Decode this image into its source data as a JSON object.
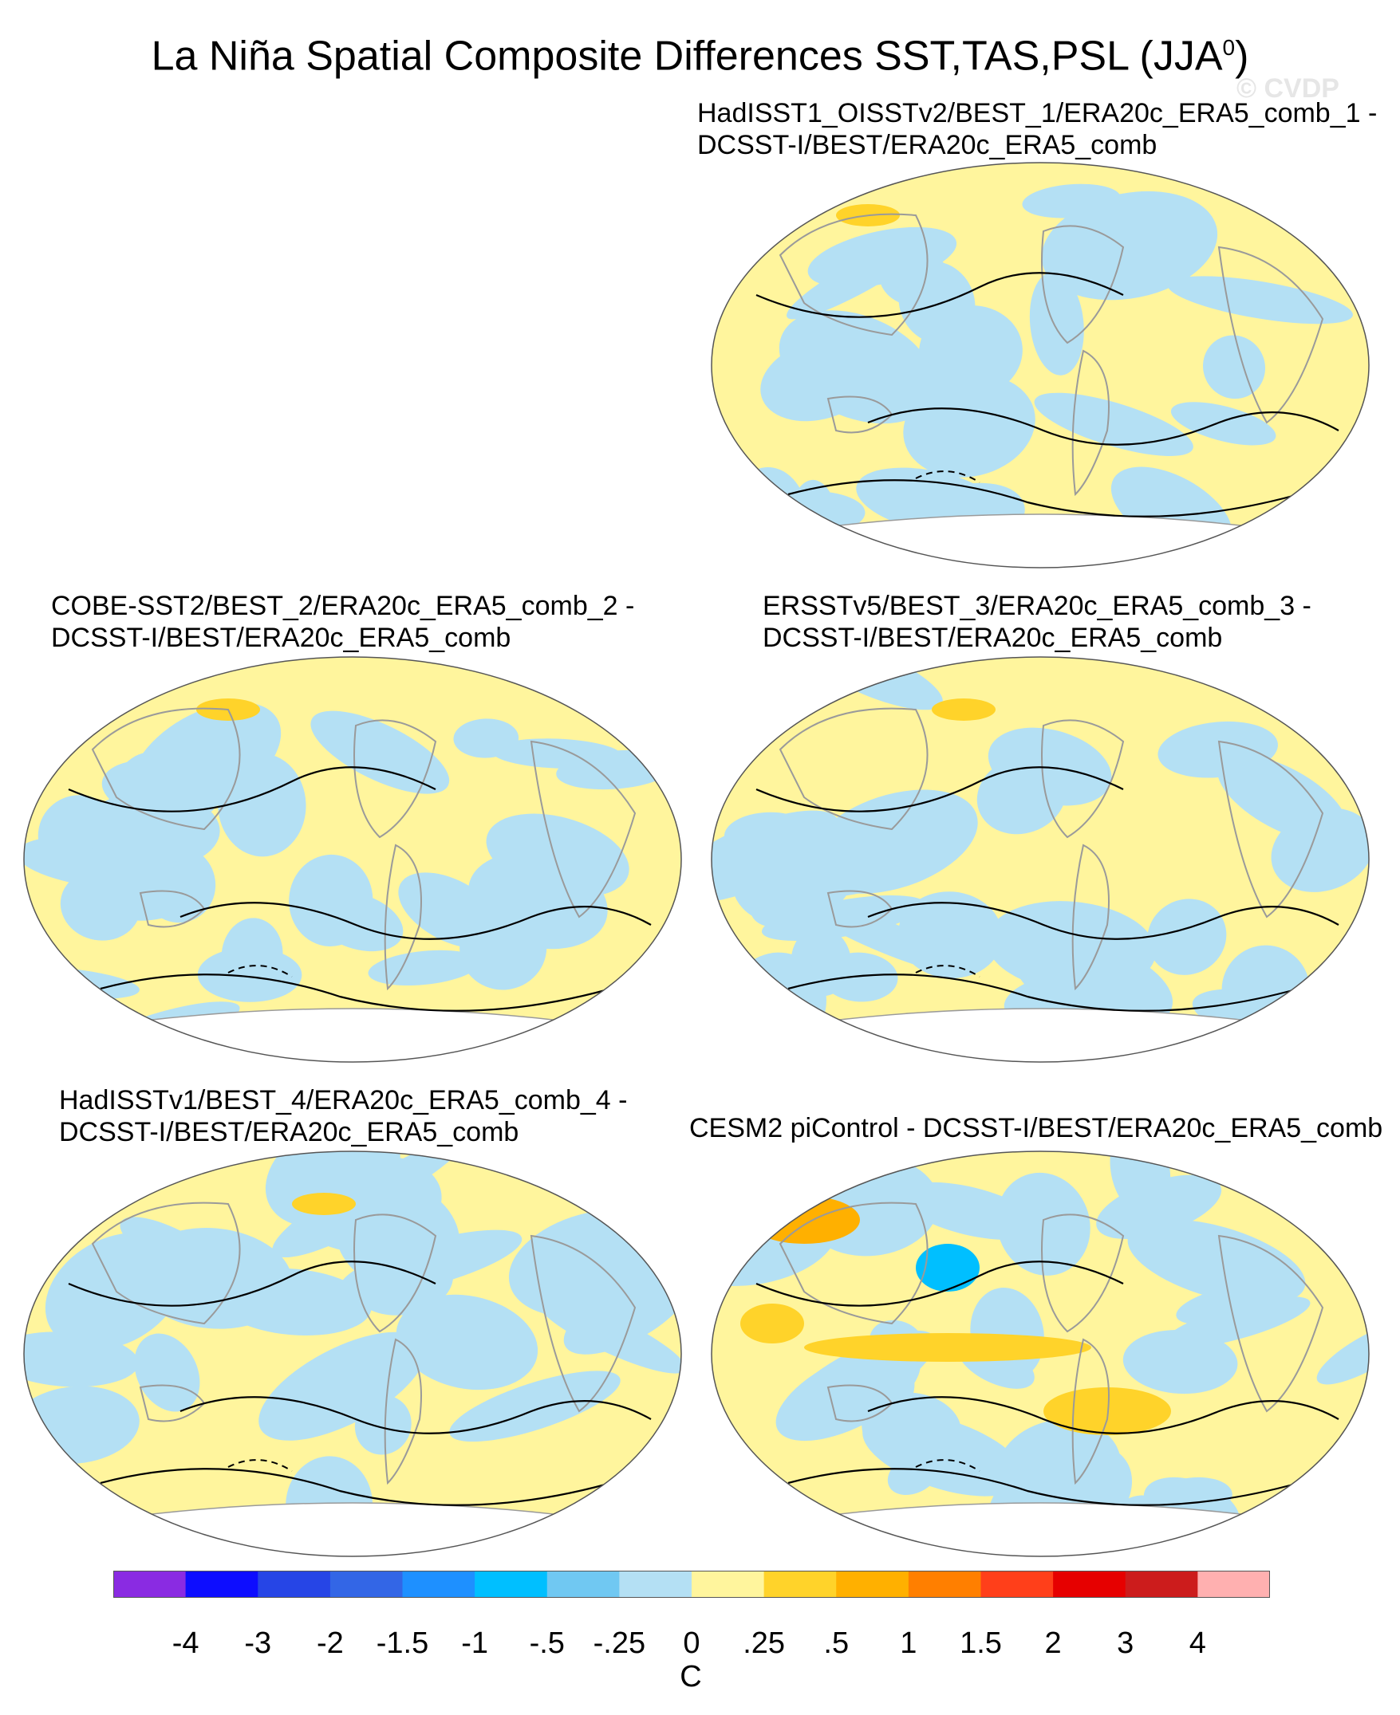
{
  "title": {
    "text": "La Niña Spatial Composite Differences SST,TAS,PSL (JJA",
    "superscript": "0",
    "close": ")"
  },
  "watermark": "© CVDP",
  "panels": [
    {
      "id": "p1",
      "line1": "HadISST1_OISSTv2/BEST_1/ERA20c_ERA5_comb_1 -",
      "line2": "DCSST-I/BEST/ERA20c_ERA5_comb"
    },
    {
      "id": "p2",
      "line1": "COBE-SST2/BEST_2/ERA20c_ERA5_comb_2 -",
      "line2": "DCSST-I/BEST/ERA20c_ERA5_comb"
    },
    {
      "id": "p3",
      "line1": "ERSSTv5/BEST_3/ERA20c_ERA5_comb_3 -",
      "line2": "DCSST-I/BEST/ERA20c_ERA5_comb"
    },
    {
      "id": "p4",
      "line1": "HadISSTv1/BEST_4/ERA20c_ERA5_comb_4 -",
      "line2": "DCSST-I/BEST/ERA20c_ERA5_comb"
    },
    {
      "id": "p5",
      "line1": "CESM2 piControl - DCSST-I/BEST/ERA20c_ERA5_comb",
      "line2": ""
    }
  ],
  "colorbar": {
    "colors": [
      "#8a2be2",
      "#0d0dff",
      "#2645e6",
      "#3366e6",
      "#1e90ff",
      "#00bfff",
      "#70c8f2",
      "#b4e0f4",
      "#fff59d",
      "#ffd32a",
      "#ffb000",
      "#ff7f00",
      "#ff3f1a",
      "#e60000",
      "#cc1c1c",
      "#ffb0b0"
    ],
    "ticks": [
      "-4",
      "-3",
      "-2",
      "-1.5",
      "-1",
      "-.5",
      "-.25",
      "0",
      ".25",
      ".5",
      "1",
      "1.5",
      "2",
      "3",
      "4"
    ],
    "units": "C"
  },
  "fill_colors": {
    "warm": "#fff59d",
    "cool": "#b4e0f4",
    "land_outline": "#9a9a9a",
    "contour": "#000000"
  }
}
